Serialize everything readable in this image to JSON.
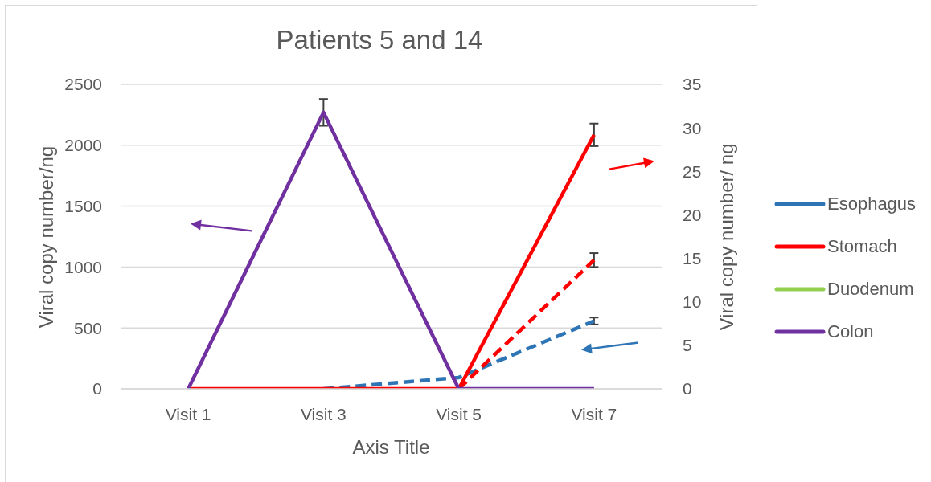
{
  "chart_data": {
    "type": "line",
    "title": "Patients 5 and 14",
    "xlabel": "Axis Title",
    "ylabel": "Viral copy number/ng",
    "y2label": "Viral copy number/ ng",
    "categories": [
      "Visit 1",
      "Visit 3",
      "Visit 5",
      "Visit 7"
    ],
    "series": [
      {
        "color": "#2e75b6",
        "line_style": "dashed",
        "axis": "y2",
        "values": [
          null,
          0,
          1.3,
          7.8
        ],
        "errors": [
          null,
          null,
          null,
          0.4
        ]
      },
      {
        "color": "#ff0000",
        "line_style": "dashed",
        "axis": "y2",
        "values": [
          null,
          null,
          0,
          14.8
        ],
        "errors": [
          null,
          null,
          null,
          0.8
        ]
      },
      {
        "name": "Esophagus",
        "color": "#2e75b6",
        "values": [
          null,
          null,
          null,
          null
        ]
      },
      {
        "name": "Stomach",
        "color": "#ff0000",
        "axis": "y2",
        "values": [
          0,
          0,
          0,
          29.2
        ],
        "errors": [
          null,
          null,
          null,
          1.3
        ]
      },
      {
        "name": "Duodenum",
        "color": "#92d050",
        "values": [
          null,
          null,
          null,
          null
        ]
      },
      {
        "name": "Colon",
        "color": "#7030a0",
        "values": [
          0,
          2270,
          0,
          0
        ],
        "errors": [
          null,
          110,
          null,
          null
        ]
      }
    ],
    "ylim": [
      0,
      2500
    ],
    "yticks": [
      0,
      500,
      1000,
      1500,
      2000,
      2500
    ],
    "y2lim": [
      0,
      35
    ],
    "y2ticks": [
      0,
      5,
      10,
      15,
      20,
      25,
      30,
      35
    ],
    "grid": "y",
    "legend": "right",
    "marker": "none",
    "line_style": "solid"
  }
}
